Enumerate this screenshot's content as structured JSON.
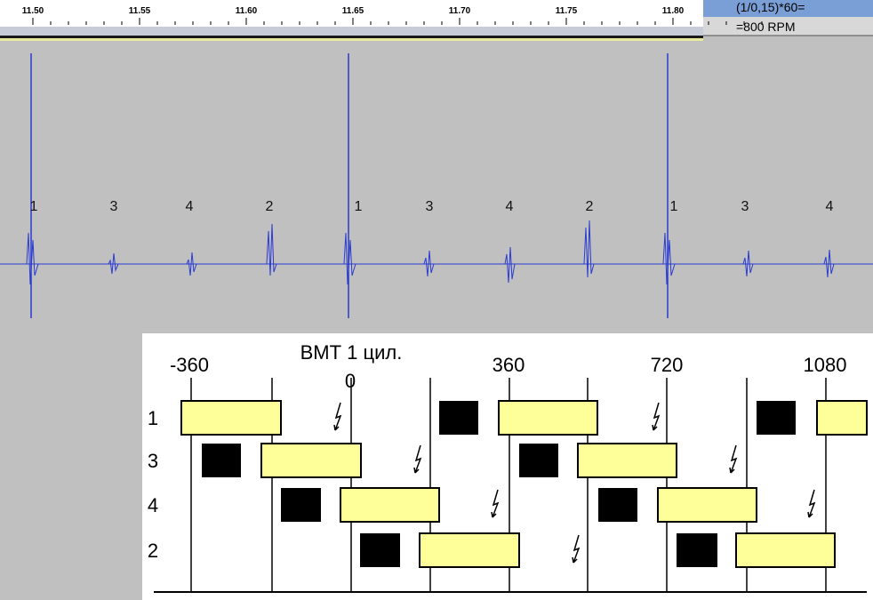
{
  "ruler": {
    "ticks": [
      "11.50",
      "11.55",
      "11.60",
      "11.65",
      "11.70",
      "11.75",
      "11.80"
    ]
  },
  "info": {
    "line1": "(1/0,15)*60=",
    "line2": "=800 RPM"
  },
  "waveform": {
    "labels": [
      "1",
      "3",
      "4",
      "2",
      "1",
      "3",
      "4",
      "2",
      "1",
      "3",
      "4"
    ]
  },
  "diagram": {
    "title": "ВМТ 1 цил.",
    "degrees": [
      "-360",
      "0",
      "360",
      "720",
      "1080"
    ],
    "rows": [
      "1",
      "3",
      "4",
      "2"
    ]
  }
}
